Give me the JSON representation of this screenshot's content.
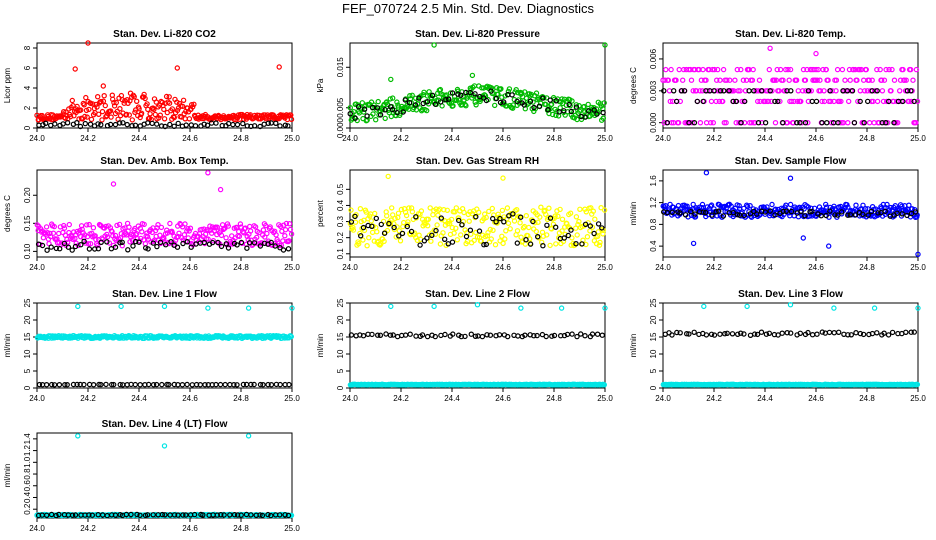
{
  "page_title": "FEF_070724  2.5 Min. Std. Dev. Diagnostics",
  "chart_data": [
    {
      "type": "scatter",
      "title": "Stan. Dev. Li-820 CO2",
      "ylabel": "Licor ppm",
      "xlim": [
        24.0,
        25.0
      ],
      "ylim": [
        0,
        8.5
      ],
      "xticks": [
        "24.0",
        "24.2",
        "24.4",
        "24.6",
        "24.8",
        "25.0"
      ],
      "yticks": [
        "0",
        "2",
        "4",
        "6",
        "8"
      ],
      "series": [
        {
          "name": "primary",
          "color": "#ff0000",
          "base": 0.8,
          "spread": 1.4,
          "trend": "co2",
          "outliers": [
            [
              24.2,
              8.5
            ],
            [
              24.15,
              5.9
            ],
            [
              24.55,
              6.0
            ],
            [
              24.95,
              6.1
            ],
            [
              24.26,
              4.2
            ]
          ]
        },
        {
          "name": "reference",
          "color": "#000000",
          "base": 0.35,
          "spread": 0.2,
          "trend": "flat"
        }
      ]
    },
    {
      "type": "scatter",
      "title": "Stan. Dev. Li-820 Pressure",
      "ylabel": "kPa",
      "xlim": [
        24.0,
        25.0
      ],
      "ylim": [
        0,
        0.021
      ],
      "xticks": [
        "24.0",
        "24.2",
        "24.4",
        "24.6",
        "24.8",
        "25.0"
      ],
      "yticks": [
        "0.000",
        "0.005",
        "0.015"
      ],
      "series": [
        {
          "name": "primary",
          "color": "#00bb00",
          "base": 0.004,
          "spread": 0.003,
          "trend": "hump",
          "outliers": [
            [
              24.33,
              0.0205
            ],
            [
              24.16,
              0.012
            ],
            [
              24.48,
              0.013
            ],
            [
              25.0,
              0.0205
            ]
          ]
        },
        {
          "name": "reference",
          "color": "#000000",
          "base": 0.004,
          "spread": 0.002,
          "trend": "hump"
        }
      ]
    },
    {
      "type": "scatter",
      "title": "Stan. Dev. Li-820 Temp.",
      "ylabel": "degrees C",
      "xlim": [
        24.0,
        25.0
      ],
      "ylim": [
        -0.0005,
        0.0075
      ],
      "xticks": [
        "24.0",
        "24.2",
        "24.4",
        "24.6",
        "24.8",
        "25.0"
      ],
      "yticks": [
        "0.000",
        "0.003",
        "0.006"
      ],
      "series": [
        {
          "name": "primary",
          "color": "#ff00ff",
          "base": 0.002,
          "spread": 0.0,
          "trend": "quantized",
          "outliers": [
            [
              24.42,
              0.007
            ],
            [
              24.6,
              0.0065
            ]
          ]
        },
        {
          "name": "reference",
          "color": "#000000",
          "base": 0.002,
          "spread": 0.0,
          "trend": "quantized"
        }
      ]
    },
    {
      "type": "scatter",
      "title": "Stan. Dev. Amb. Box Temp.",
      "ylabel": "degrees C",
      "xlim": [
        24.0,
        25.0
      ],
      "ylim": [
        0.09,
        0.245
      ],
      "xticks": [
        "24.0",
        "24.2",
        "24.4",
        "24.6",
        "24.8",
        "25.0"
      ],
      "yticks": [
        "0.10",
        "0.15",
        "0.20"
      ],
      "series": [
        {
          "name": "primary",
          "color": "#ff00ff",
          "base": 0.13,
          "spread": 0.02,
          "trend": "flat",
          "outliers": [
            [
              24.67,
              0.24
            ],
            [
              24.3,
              0.22
            ],
            [
              24.72,
              0.21
            ]
          ]
        },
        {
          "name": "reference",
          "color": "#000000",
          "base": 0.11,
          "spread": 0.008,
          "trend": "flat"
        }
      ]
    },
    {
      "type": "scatter",
      "title": "Stan. Dev. Gas Stream RH",
      "ylabel": "percent",
      "xlim": [
        24.0,
        25.0
      ],
      "ylim": [
        0.08,
        0.62
      ],
      "xticks": [
        "24.0",
        "24.2",
        "24.4",
        "24.6",
        "24.8",
        "25.0"
      ],
      "yticks": [
        "0.1",
        "0.2",
        "0.3",
        "0.4",
        "0.5"
      ],
      "series": [
        {
          "name": "primary",
          "color": "#ffff00",
          "base": 0.27,
          "spread": 0.12,
          "trend": "flat",
          "outliers": [
            [
              24.15,
              0.58
            ],
            [
              24.6,
              0.57
            ]
          ]
        },
        {
          "name": "reference",
          "color": "#000000",
          "base": 0.25,
          "spread": 0.1,
          "trend": "flat"
        }
      ]
    },
    {
      "type": "scatter",
      "title": "Stan. Dev. Sample Flow",
      "ylabel": "ml/min",
      "xlim": [
        24.0,
        25.0
      ],
      "ylim": [
        0.2,
        1.8
      ],
      "xticks": [
        "24.0",
        "24.2",
        "24.4",
        "24.6",
        "24.8",
        "25.0"
      ],
      "yticks": [
        "0.4",
        "0.8",
        "1.2",
        "1.6"
      ],
      "series": [
        {
          "name": "primary",
          "color": "#0000ff",
          "base": 1.05,
          "spread": 0.12,
          "trend": "flat",
          "outliers": [
            [
              24.17,
              1.75
            ],
            [
              24.5,
              1.65
            ],
            [
              24.65,
              0.4
            ],
            [
              24.55,
              0.55
            ],
            [
              25.0,
              0.25
            ],
            [
              24.12,
              0.45
            ]
          ]
        },
        {
          "name": "reference",
          "color": "#000000",
          "base": 1.0,
          "spread": 0.05,
          "trend": "flat"
        }
      ]
    },
    {
      "type": "scatter",
      "title": "Stan. Dev. Line 1 Flow",
      "ylabel": "ml/min",
      "xlim": [
        24.0,
        25.0
      ],
      "ylim": [
        0,
        25
      ],
      "xticks": [
        "24.0",
        "24.2",
        "24.4",
        "24.6",
        "24.8",
        "25.0"
      ],
      "yticks": [
        "0",
        "5",
        "10",
        "15",
        "20",
        "25"
      ],
      "series": [
        {
          "name": "primary",
          "color": "#00e5e5",
          "base": 15.0,
          "spread": 0.4,
          "trend": "flat",
          "outliers": [
            [
              24.16,
              24.0
            ],
            [
              24.33,
              24.0
            ],
            [
              24.5,
              24.0
            ],
            [
              24.67,
              23.5
            ],
            [
              24.83,
              23.5
            ],
            [
              25.0,
              23.5
            ]
          ]
        },
        {
          "name": "reference",
          "color": "#000000",
          "base": 1.0,
          "spread": 0.05,
          "trend": "flat"
        }
      ]
    },
    {
      "type": "scatter",
      "title": "Stan. Dev. Line 2 Flow",
      "ylabel": "ml/min",
      "xlim": [
        24.0,
        25.0
      ],
      "ylim": [
        0,
        25
      ],
      "xticks": [
        "24.0",
        "24.2",
        "24.4",
        "24.6",
        "24.8",
        "25.0"
      ],
      "yticks": [
        "0",
        "5",
        "10",
        "15",
        "20",
        "25"
      ],
      "series": [
        {
          "name": "primary",
          "color": "#00e5e5",
          "base": 1.0,
          "spread": 0.1,
          "trend": "flat",
          "outliers": [
            [
              24.16,
              24.0
            ],
            [
              24.33,
              24.0
            ],
            [
              24.5,
              24.5
            ],
            [
              24.67,
              23.5
            ],
            [
              24.83,
              23.5
            ],
            [
              25.0,
              23.5
            ]
          ]
        },
        {
          "name": "reference",
          "color": "#000000",
          "base": 15.5,
          "spread": 0.4,
          "trend": "flat"
        }
      ]
    },
    {
      "type": "scatter",
      "title": "Stan. Dev. Line 3 Flow",
      "ylabel": "ml/min",
      "xlim": [
        24.0,
        25.0
      ],
      "ylim": [
        0,
        25
      ],
      "xticks": [
        "24.0",
        "24.2",
        "24.4",
        "24.6",
        "24.8",
        "25.0"
      ],
      "yticks": [
        "0",
        "5",
        "10",
        "15",
        "20",
        "25"
      ],
      "series": [
        {
          "name": "primary",
          "color": "#00e5e5",
          "base": 1.0,
          "spread": 0.1,
          "trend": "flat",
          "outliers": [
            [
              24.16,
              24.0
            ],
            [
              24.33,
              24.0
            ],
            [
              24.5,
              24.5
            ],
            [
              24.67,
              23.5
            ],
            [
              24.83,
              23.5
            ],
            [
              25.0,
              23.5
            ]
          ]
        },
        {
          "name": "reference",
          "color": "#000000",
          "base": 16.0,
          "spread": 0.5,
          "trend": "flat"
        }
      ]
    },
    {
      "type": "scatter",
      "title": "Stan. Dev. Line 4 (LT) Flow",
      "ylabel": "ml/min",
      "xlim": [
        24.0,
        25.0
      ],
      "ylim": [
        0.05,
        1.5
      ],
      "xticks": [
        "24.0",
        "24.2",
        "24.4",
        "24.6",
        "24.8",
        "25.0"
      ],
      "yticks": [
        "0.2",
        "0.4",
        "0.6",
        "0.8",
        "1.0",
        "1.2",
        "1.4"
      ],
      "series": [
        {
          "name": "primary",
          "color": "#00e5e5",
          "base": 0.1,
          "spread": 0.01,
          "trend": "flat",
          "outliers": [
            [
              24.16,
              1.45
            ],
            [
              24.5,
              1.28
            ],
            [
              24.83,
              1.45
            ]
          ]
        },
        {
          "name": "reference",
          "color": "#000000",
          "base": 0.1,
          "spread": 0.01,
          "trend": "flat"
        }
      ]
    }
  ]
}
